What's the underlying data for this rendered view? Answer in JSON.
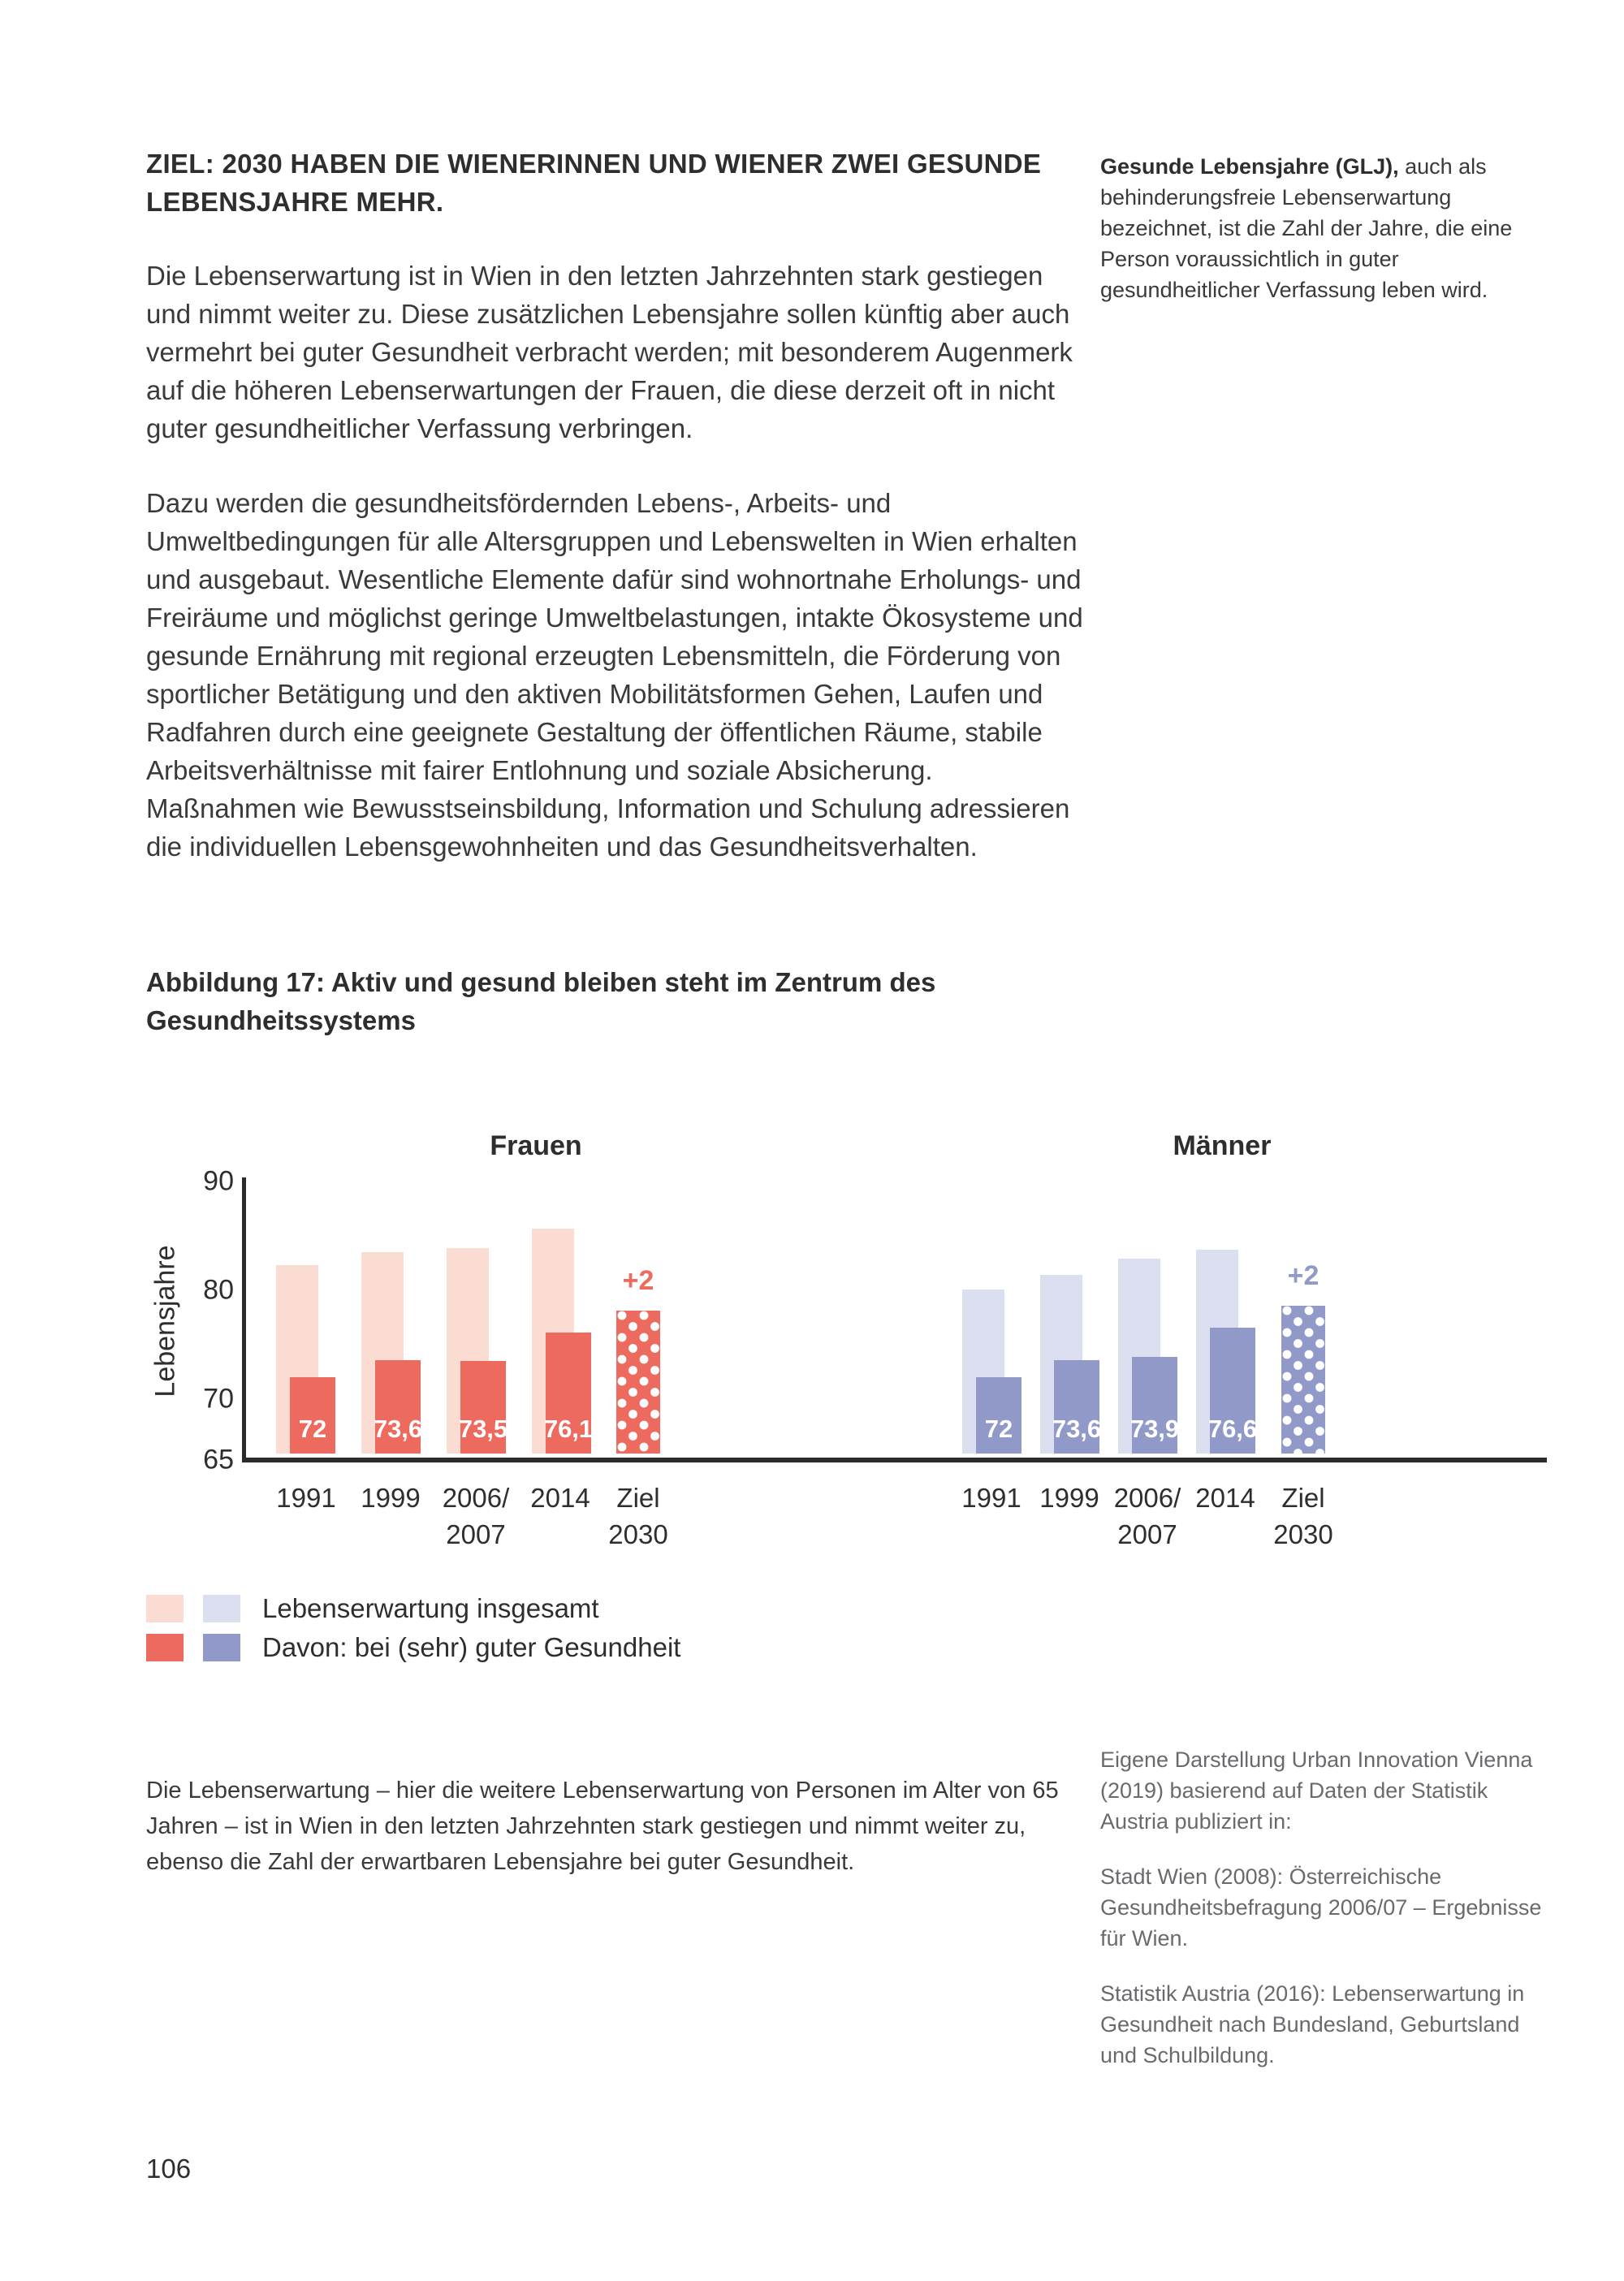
{
  "heading": {
    "title": "ZIEL: 2030 HABEN DIE WIENERINNEN UND WIENER ZWEI GESUNDE LEBENSJAHRE MEHR."
  },
  "sidebar_note": {
    "bold": "Gesunde Lebensjahre (GLJ),",
    "rest": " auch als behinderungsfreie Lebenserwartung bezeichnet, ist die Zahl der Jahre, die eine Person voraussichtlich in guter gesundheitlicher Verfassung leben wird."
  },
  "paragraphs": [
    "Die Lebenserwartung ist in Wien in den letzten Jahrzehnten stark gestiegen und nimmt weiter zu. Diese zusätzlichen Lebensjahre sollen künftig aber auch vermehrt bei guter Gesundheit verbracht werden; mit besonderem Augenmerk auf die höheren Lebenserwartungen der Frauen, die diese derzeit oft in nicht guter gesundheitlicher Verfassung verbringen.",
    "Dazu werden die gesundheitsfördernden Lebens-, Arbeits- und Umweltbedingungen für alle Altersgruppen und Lebenswelten in Wien erhalten und ausgebaut. Wesentliche Elemente dafür sind wohnortnahe Erholungs- und Freiräume und möglichst geringe Umweltbelastungen, intakte Ökosysteme und gesunde Ernährung mit regional erzeugten Lebensmitteln, die Förderung von sportlicher Betätigung und den aktiven Mobilitätsformen Gehen, Laufen und Radfahren durch eine geeignete Gestaltung der öffentlichen Räume, stabile Arbeitsverhältnisse mit fairer Entlohnung und soziale Absicherung. Maßnahmen wie Bewusstseinsbildung, Information und Schulung adressieren die individuellen Lebensgewohnheiten und das Gesundheitsverhalten."
  ],
  "figure": {
    "caption": "Abbildung 17: Aktiv und gesund bleiben steht im Zentrum des Gesundheitssystems"
  },
  "chart_data": {
    "type": "bar",
    "ylabel": "Lebensjahre",
    "ylim": [
      65,
      90
    ],
    "yticks": [
      "90",
      "80",
      "70",
      "65"
    ],
    "ytick_values": [
      90,
      80,
      70,
      65
    ],
    "categories": [
      [
        "1991"
      ],
      [
        "1999"
      ],
      [
        "2006/",
        "2007"
      ],
      [
        "2014"
      ],
      [
        "Ziel",
        "2030"
      ]
    ],
    "grid": false,
    "groups": [
      {
        "title": "Frauen",
        "accent": "#ed6a5e",
        "light": "#fadcd2",
        "series": [
          {
            "name": "Lebenserwartung insgesamt",
            "values": [
              82.3,
              83.5,
              83.9,
              85.7
            ]
          },
          {
            "name": "Davon: bei (sehr) guter Gesundheit",
            "values": [
              72,
              73.6,
              73.5,
              76.1
            ],
            "labels": [
              "72",
              "73,6",
              "73,5",
              "76,1"
            ]
          }
        ],
        "target": {
          "label": "+2",
          "value": 78.1,
          "category": "Ziel 2030"
        }
      },
      {
        "title": "Männer",
        "accent": "#9099c8",
        "light": "#dbdff0",
        "series": [
          {
            "name": "Lebenserwartung insgesamt",
            "values": [
              80.1,
              81.4,
              82.9,
              83.7
            ]
          },
          {
            "name": "Davon: bei (sehr) guter Gesundheit",
            "values": [
              72,
              73.6,
              73.9,
              76.6
            ],
            "labels": [
              "72",
              "73,6",
              "73,9",
              "76,6"
            ]
          }
        ],
        "target": {
          "label": "+2",
          "value": 78.6,
          "category": "Ziel 2030"
        }
      }
    ]
  },
  "legend": {
    "items": [
      {
        "label": "Lebenserwartung insgesamt",
        "colors": [
          "#fadcd2",
          "#dbdff0"
        ]
      },
      {
        "label": "Davon: bei (sehr) guter Gesundheit",
        "colors": [
          "#ed6a5e",
          "#9099c8"
        ]
      }
    ]
  },
  "description": {
    "text": "Die Lebenserwartung – hier die weitere Lebenserwartung von Personen im Alter von 65 Jahren – ist in Wien in den letzten Jahrzehnten stark gestiegen und nimmt weiter zu, ebenso die Zahl der erwartbaren Lebensjahre bei guter Gesundheit."
  },
  "sources": [
    "Eigene Darstellung Urban Innovation Vienna (2019) basierend auf Daten der Statistik Austria publiziert in:",
    "Stadt Wien (2008): Österreichische Gesundheitsbefragung 2006/07 – Ergebnisse für Wien.",
    "Statistik Austria (2016): Lebenserwartung in Gesundheit nach Bundesland, Geburtsland und Schulbildung."
  ],
  "footer": {
    "page_number": "106"
  }
}
